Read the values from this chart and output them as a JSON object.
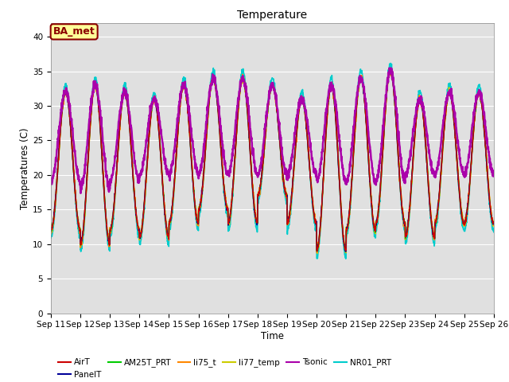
{
  "title": "Temperature",
  "xlabel": "Time",
  "ylabel": "Temperatures (C)",
  "ylim": [
    0,
    42
  ],
  "yticks": [
    0,
    5,
    10,
    15,
    20,
    25,
    30,
    35,
    40
  ],
  "n_days": 15,
  "start_day": 11,
  "annotation_text": "BA_met",
  "annotation_color": "#8B0000",
  "annotation_bg": "#FFFF99",
  "bg_color": "#E0E0E0",
  "series_colors": {
    "AirT": "#CC0000",
    "PanelT": "#000099",
    "AM25T_PRT": "#00CC00",
    "li75_t": "#FF8800",
    "li77_temp": "#CCCC00",
    "Tsonic": "#AA00AA",
    "NR01_PRT": "#00CCCC"
  },
  "day_mins": [
    12,
    10,
    12,
    11,
    13,
    15,
    13,
    17,
    13,
    9,
    12,
    13,
    11,
    13,
    13
  ],
  "day_maxs": [
    32,
    33,
    32,
    31,
    33,
    34,
    34,
    33,
    31,
    33,
    34,
    35,
    31,
    32,
    32
  ],
  "tsonic_day_mins": [
    19,
    18,
    19,
    20,
    20,
    20,
    20,
    20,
    20,
    19,
    19,
    19,
    20,
    20,
    20
  ],
  "tsonic_day_maxs": [
    32,
    33,
    32,
    31,
    33,
    34,
    34,
    33,
    31,
    33,
    34,
    35,
    31,
    32,
    32
  ]
}
